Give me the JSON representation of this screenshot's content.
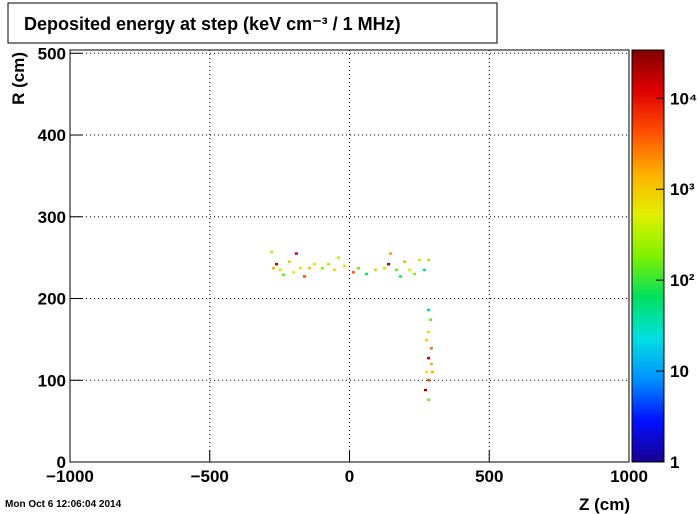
{
  "chart_data": {
    "type": "heatmap",
    "title": "Deposited energy at step (keV cm⁻³ / 1 MHz)",
    "x_label": "Z (cm)",
    "y_label": "R (cm)",
    "timestamp": "Mon Oct  6 12:06:04 2014",
    "xlim": [
      -1000,
      1000
    ],
    "ylim": [
      0,
      504
    ],
    "zlim": [
      1,
      34000
    ],
    "zscale": "log",
    "grid": true,
    "xticks": [
      {
        "value": -1000,
        "label": "−1000"
      },
      {
        "value": -500,
        "label": "−500"
      },
      0,
      500,
      1000
    ],
    "yticks": [
      0,
      100,
      200,
      300,
      400,
      500
    ],
    "zticks": [
      1,
      10,
      {
        "value": 100,
        "label": "10²"
      },
      {
        "value": 1000,
        "label": "10³"
      },
      {
        "value": 10000,
        "label": "10⁴"
      }
    ],
    "colorscale": [
      "#1a0090",
      "#0010ff",
      "#0090ff",
      "#00e0e0",
      "#00e060",
      "#80f000",
      "#e0f000",
      "#ffb000",
      "#ff5000",
      "#e00000",
      "#800000"
    ],
    "x": [
      -279,
      -261,
      -272,
      -247,
      -236,
      -215,
      -200,
      -190,
      -175,
      -161,
      -143,
      -125,
      -97,
      -75,
      -54,
      -39,
      -18,
      14,
      32,
      61,
      93,
      125,
      140,
      147,
      168,
      182,
      197,
      215,
      233,
      250,
      268,
      283,
      283,
      290,
      283,
      276,
      293,
      283,
      293,
      276,
      297,
      283,
      272,
      283
    ],
    "y": [
      257,
      242,
      237,
      235,
      229,
      245,
      232,
      255,
      237,
      227,
      237,
      242,
      237,
      242,
      235,
      250,
      240,
      232,
      237,
      230,
      235,
      237,
      242,
      255,
      235,
      227,
      245,
      235,
      230,
      247,
      235,
      247,
      186,
      174,
      159,
      149,
      139,
      127,
      120,
      110,
      110,
      100,
      88,
      76
    ],
    "z": [
      300,
      20000,
      1500,
      400,
      150,
      1000,
      500,
      15000,
      400,
      5000,
      1200,
      400,
      200,
      300,
      800,
      300,
      500,
      4000,
      150,
      60,
      1000,
      400,
      25000,
      2000,
      150,
      80,
      1500,
      600,
      200,
      400,
      50,
      300,
      60,
      150,
      400,
      800,
      3000,
      20000,
      1500,
      500,
      1200,
      5000,
      25000,
      150
    ]
  }
}
